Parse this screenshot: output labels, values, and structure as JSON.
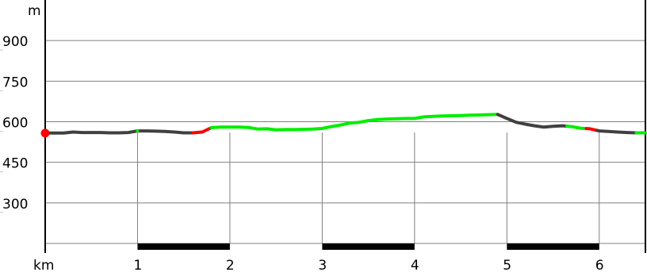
{
  "chart_data": {
    "type": "line",
    "title": "",
    "xlabel": "km",
    "ylabel": "m",
    "xlim": [
      0,
      6.5
    ],
    "ylim": [
      150,
      1050
    ],
    "x_ticks": [
      "1",
      "2",
      "3",
      "4",
      "5",
      "6"
    ],
    "y_ticks": [
      "300",
      "450",
      "600",
      "750",
      "900"
    ],
    "grid": true,
    "series": [
      {
        "points": [
          [
            0.0,
            558
          ],
          [
            0.1,
            558
          ],
          [
            0.2,
            558
          ],
          [
            0.3,
            562
          ],
          [
            0.4,
            560
          ],
          [
            0.5,
            560
          ],
          [
            0.6,
            560
          ],
          [
            0.7,
            559
          ],
          [
            0.8,
            559
          ],
          [
            0.9,
            560
          ],
          [
            1.0,
            566
          ],
          [
            1.1,
            566
          ],
          [
            1.2,
            565
          ],
          [
            1.3,
            564
          ],
          [
            1.4,
            562
          ],
          [
            1.5,
            559
          ],
          [
            1.6,
            559
          ],
          [
            1.7,
            562
          ],
          [
            1.8,
            578
          ],
          [
            1.9,
            580
          ],
          [
            2.0,
            580
          ],
          [
            2.1,
            580
          ],
          [
            2.2,
            579
          ],
          [
            2.3,
            573
          ],
          [
            2.4,
            574
          ],
          [
            2.5,
            570
          ],
          [
            2.6,
            571
          ],
          [
            2.7,
            571
          ],
          [
            2.8,
            572
          ],
          [
            2.9,
            573
          ],
          [
            3.0,
            575
          ],
          [
            3.1,
            582
          ],
          [
            3.2,
            588
          ],
          [
            3.3,
            595
          ],
          [
            3.4,
            598
          ],
          [
            3.5,
            604
          ],
          [
            3.6,
            608
          ],
          [
            3.7,
            610
          ],
          [
            3.8,
            611
          ],
          [
            3.9,
            612
          ],
          [
            4.0,
            612
          ],
          [
            4.1,
            618
          ],
          [
            4.2,
            620
          ],
          [
            4.3,
            621
          ],
          [
            4.4,
            622
          ],
          [
            4.5,
            623
          ],
          [
            4.6,
            624
          ],
          [
            4.7,
            625
          ],
          [
            4.8,
            626
          ],
          [
            4.9,
            627
          ],
          [
            5.0,
            612
          ],
          [
            5.1,
            598
          ],
          [
            5.2,
            591
          ],
          [
            5.3,
            585
          ],
          [
            5.4,
            580
          ],
          [
            5.5,
            583
          ],
          [
            5.6,
            585
          ],
          [
            5.7,
            582
          ],
          [
            5.8,
            576
          ],
          [
            5.9,
            574
          ],
          [
            6.0,
            566
          ],
          [
            6.1,
            564
          ],
          [
            6.2,
            562
          ],
          [
            6.3,
            560
          ],
          [
            6.4,
            559
          ],
          [
            6.5,
            559
          ]
        ],
        "segments": [
          {
            "from": 0.0,
            "to": 0.98,
            "color": "#404040"
          },
          {
            "from": 0.98,
            "to": 1.6,
            "color": "#404040"
          },
          {
            "from": 1.6,
            "to": 1.8,
            "color": "#ff0000"
          },
          {
            "from": 1.8,
            "to": 4.9,
            "color": "#00ee00"
          },
          {
            "from": 4.9,
            "to": 5.65,
            "color": "#404040"
          },
          {
            "from": 5.65,
            "to": 5.86,
            "color": "#00ee00"
          },
          {
            "from": 5.86,
            "to": 5.98,
            "color": "#ff0000"
          },
          {
            "from": 5.98,
            "to": 6.4,
            "color": "#404040"
          },
          {
            "from": 6.4,
            "to": 6.5,
            "color": "#00ee00"
          }
        ],
        "start_marker": {
          "x": 0.0,
          "y": 558,
          "color": "#ff0000"
        },
        "green_transition": {
          "x": 1.0,
          "color": "#00ee00"
        }
      }
    ],
    "bottom_bar_ranges": [
      [
        1,
        2
      ],
      [
        3,
        4
      ],
      [
        5,
        6
      ]
    ],
    "colors": {
      "axis": "#000000",
      "grid": "#808080",
      "tick_labels": "#000000",
      "default_line": "#404040",
      "highlight_line": "#00ee00",
      "warning_line": "#ff0000"
    }
  }
}
